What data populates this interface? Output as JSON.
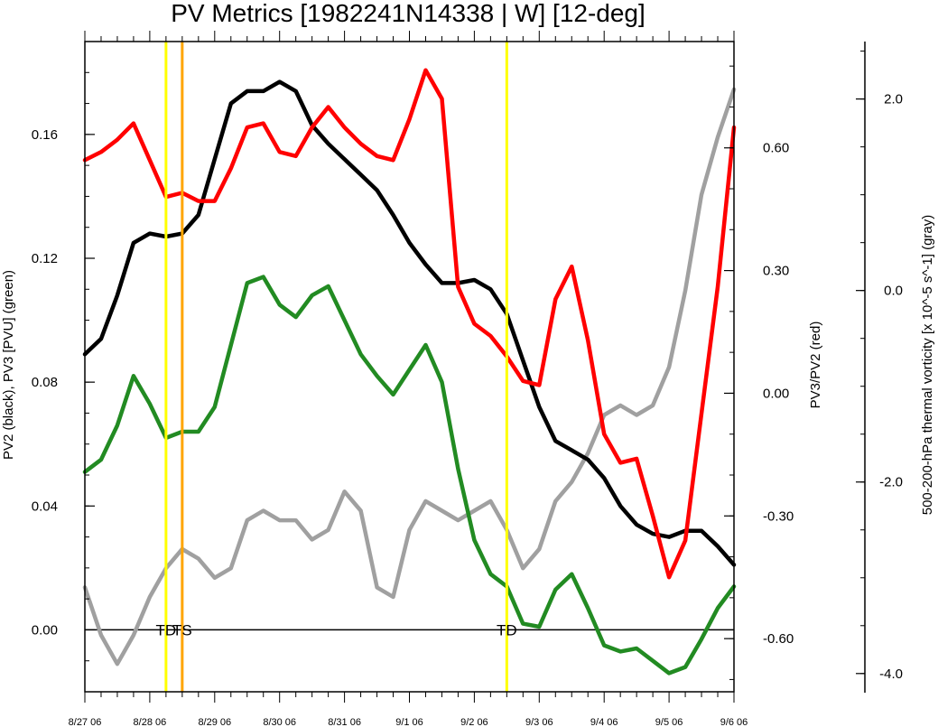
{
  "chart_data": {
    "type": "line",
    "title": "PV Metrics [1982241N14338 | W] [12-deg]",
    "ylabel_left": "PV2 (black), PV3 [PVU] (green)",
    "ylabel_right_inner": "PV3/PV2 (red)",
    "ylabel_right_outer": "500-200-hPa thermal vorticity [x 10^-5 s^-1] (gray)",
    "x_ticks": [
      "8/27 06",
      "8/28 06",
      "8/29 06",
      "8/30 06",
      "8/31 06",
      "9/1 06",
      "9/2 06",
      "9/3 06",
      "9/4 06",
      "9/5 06",
      "9/6 06"
    ],
    "x_range": [
      0,
      240
    ],
    "ylim_left": [
      -0.02,
      0.19
    ],
    "ylim_red": [
      -0.73,
      0.86
    ],
    "ylim_gray": [
      -4.2,
      2.6
    ],
    "yticks_left": [
      "0.00",
      "0.04",
      "0.08",
      "0.12",
      "0.16"
    ],
    "yticks_left_values": [
      0,
      0.04,
      0.08,
      0.12,
      0.16
    ],
    "yticks_red": [
      "-0.60",
      "-0.30",
      "0.00",
      "0.30",
      "0.60"
    ],
    "yticks_red_values": [
      -0.6,
      -0.3,
      0,
      0.3,
      0.6
    ],
    "yticks_gray": [
      "-4.0",
      "-2.0",
      "0.0",
      "2.0"
    ],
    "yticks_gray_values": [
      -4,
      -2,
      0,
      2
    ],
    "colors": {
      "pv2": "#000000",
      "pv3": "#228b22",
      "ratio": "#ff0000",
      "vort": "#a0a0a0",
      "td": "#ffff00",
      "ts": "#ffa500"
    },
    "x": [
      0,
      6,
      12,
      18,
      24,
      30,
      36,
      42,
      48,
      54,
      60,
      66,
      72,
      78,
      84,
      90,
      96,
      102,
      108,
      114,
      120,
      126,
      132,
      138,
      144,
      150,
      156,
      162,
      168,
      174,
      180,
      186,
      192,
      198,
      204,
      210,
      216,
      222,
      228,
      234,
      240
    ],
    "series": [
      {
        "name": "PV2",
        "axis": "left",
        "values": [
          0.089,
          0.094,
          0.108,
          0.125,
          0.128,
          0.127,
          0.128,
          0.134,
          0.152,
          0.17,
          0.174,
          0.174,
          0.177,
          0.174,
          0.163,
          0.157,
          0.152,
          0.147,
          0.142,
          0.134,
          0.125,
          0.118,
          0.112,
          0.112,
          0.113,
          0.11,
          0.102,
          0.087,
          0.072,
          0.061,
          0.058,
          0.055,
          0.049,
          0.04,
          0.034,
          0.031,
          0.03,
          0.032,
          0.032,
          0.027,
          0.021
        ]
      },
      {
        "name": "PV3",
        "axis": "left",
        "values": [
          0.051,
          0.055,
          0.066,
          0.082,
          0.073,
          0.062,
          0.064,
          0.064,
          0.072,
          0.092,
          0.112,
          0.114,
          0.105,
          0.101,
          0.108,
          0.111,
          0.1,
          0.089,
          0.082,
          0.076,
          0.084,
          0.092,
          0.08,
          0.052,
          0.029,
          0.018,
          0.014,
          0.002,
          0.001,
          0.013,
          0.018,
          0.007,
          -0.005,
          -0.007,
          -0.006,
          -0.01,
          -0.014,
          -0.012,
          -0.003,
          0.007,
          0.014
        ]
      },
      {
        "name": "PV3/PV2",
        "axis": "red",
        "values": [
          0.57,
          0.59,
          0.62,
          0.66,
          0.57,
          0.48,
          0.49,
          0.47,
          0.47,
          0.55,
          0.65,
          0.66,
          0.59,
          0.58,
          0.65,
          0.7,
          0.65,
          0.61,
          0.58,
          0.57,
          0.67,
          0.79,
          0.72,
          0.26,
          0.17,
          0.14,
          0.09,
          0.03,
          0.02,
          0.23,
          0.31,
          0.13,
          -0.1,
          -0.17,
          -0.16,
          -0.3,
          -0.45,
          -0.36,
          -0.05,
          0.26,
          0.65
        ]
      },
      {
        "name": "500-200-hPa thermal vorticity",
        "axis": "gray",
        "values": [
          -3.1,
          -3.6,
          -3.9,
          -3.6,
          -3.2,
          -2.9,
          -2.7,
          -2.8,
          -3.0,
          -2.9,
          -2.4,
          -2.3,
          -2.4,
          -2.4,
          -2.6,
          -2.5,
          -2.1,
          -2.3,
          -3.1,
          -3.2,
          -2.5,
          -2.2,
          -2.3,
          -2.4,
          -2.3,
          -2.2,
          -2.5,
          -2.9,
          -2.7,
          -2.2,
          -2.0,
          -1.7,
          -1.3,
          -1.2,
          -1.3,
          -1.2,
          -0.8,
          0.0,
          1.0,
          1.6,
          2.1
        ]
      }
    ],
    "vertical_lines": [
      {
        "x": 30,
        "color": "#ffff00",
        "label": "TD"
      },
      {
        "x": 36,
        "color": "#ffa500",
        "label": "TS"
      },
      {
        "x": 156,
        "color": "#ffff00",
        "label": "TD"
      }
    ],
    "zero_line": true,
    "grid": false,
    "legend": "none"
  }
}
